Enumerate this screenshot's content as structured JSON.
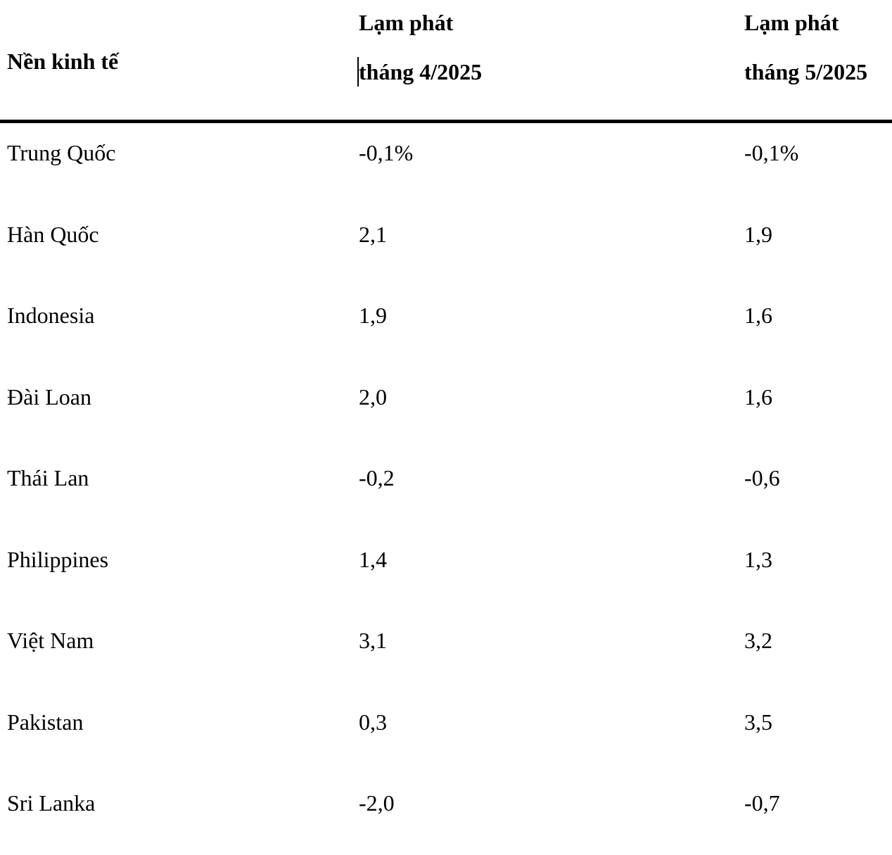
{
  "table": {
    "header": {
      "economy_label": "Nền kinh tế",
      "col_april": {
        "line1": "Lạm phát",
        "line2": "tháng 4/2025"
      },
      "col_may": {
        "line1": "Lạm phát",
        "line2": "tháng 5/2025"
      }
    },
    "rows": [
      {
        "economy": "Trung Quốc",
        "apr": "-0,1%",
        "may": "-0,1%"
      },
      {
        "economy": "Hàn Quốc",
        "apr": "2,1",
        "may": "1,9"
      },
      {
        "economy": "Indonesia",
        "apr": "1,9",
        "may": "1,6"
      },
      {
        "economy": "Đài Loan",
        "apr": "2,0",
        "may": "1,6"
      },
      {
        "economy": "Thái Lan",
        "apr": "-0,2",
        "may": "-0,6"
      },
      {
        "economy": "Philippines",
        "apr": "1,4",
        "may": "1,3"
      },
      {
        "economy": "Việt Nam",
        "apr": "3,1",
        "may": "3,2"
      },
      {
        "economy": "Pakistan",
        "apr": "0,3",
        "may": "3,5"
      },
      {
        "economy": "Sri Lanka",
        "apr": "-2,0",
        "may": "-0,7"
      }
    ],
    "colors": {
      "text": "#000000",
      "background": "#ffffff",
      "divider": "#000000"
    }
  }
}
